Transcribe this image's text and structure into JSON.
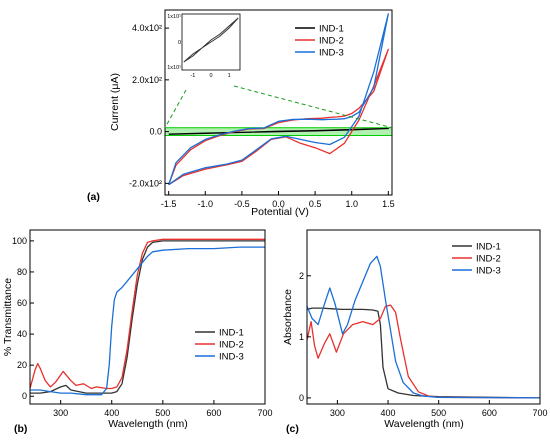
{
  "chart_data": [
    {
      "type": "line",
      "panel_label": "(a)",
      "xlabel": "Potential (V)",
      "ylabel": "Current (μA)",
      "xlim": [
        -1.55,
        1.55
      ],
      "ylim": [
        -245,
        470
      ],
      "x_ticks": [
        -1.5,
        -1.0,
        -0.5,
        0.0,
        0.5,
        1.0,
        1.5
      ],
      "x_tick_labels": [
        "-1.5",
        "-1.0",
        "-0.5",
        "0.0",
        "0.5",
        "1.0",
        "1.5"
      ],
      "y_ticks": [
        -200,
        0,
        200,
        400
      ],
      "y_tick_labels": [
        "-2.0x10²",
        "0.0",
        "2.0x10²",
        "4.0x10²"
      ],
      "legend": "top-right",
      "highlight_band": {
        "ymin": -15,
        "ymax": 15,
        "color": "#00cc00"
      },
      "series": [
        {
          "name": "IND-1",
          "color": "#000000",
          "x": [
            -1.5,
            -1.0,
            -0.5,
            0.0,
            0.5,
            1.0,
            1.5,
            1.0,
            0.5,
            0.0,
            -0.5,
            -1.0,
            -1.5
          ],
          "y": [
            -10,
            -7,
            -3,
            0,
            3,
            7,
            12,
            8,
            4,
            1,
            -3,
            -6,
            -10
          ]
        },
        {
          "name": "IND-2",
          "color": "#e8302e",
          "x": [
            -1.5,
            -1.3,
            -1.0,
            -0.7,
            -0.5,
            -0.3,
            -0.1,
            0.1,
            0.3,
            0.5,
            0.7,
            0.9,
            1.1,
            1.3,
            1.5,
            1.3,
            1.1,
            1.0,
            0.9,
            0.8,
            0.7,
            0.6,
            0.4,
            0.2,
            0.0,
            -0.2,
            -0.4,
            -0.6,
            -0.8,
            -1.0,
            -1.2,
            -1.4,
            -1.5
          ],
          "y": [
            -205,
            -170,
            -145,
            -128,
            -115,
            -75,
            -30,
            -20,
            -45,
            -62,
            -85,
            -45,
            45,
            175,
            318,
            155,
            90,
            70,
            60,
            57,
            55,
            52,
            50,
            45,
            35,
            12,
            10,
            0,
            -15,
            -35,
            -70,
            -130,
            -205
          ]
        },
        {
          "name": "IND-3",
          "color": "#1a6fd8",
          "x": [
            -1.5,
            -1.3,
            -1.0,
            -0.7,
            -0.5,
            -0.3,
            -0.1,
            0.1,
            0.3,
            0.5,
            0.7,
            0.9,
            1.1,
            1.3,
            1.5,
            1.3,
            1.1,
            1.0,
            0.9,
            0.8,
            0.7,
            0.6,
            0.4,
            0.2,
            0.0,
            -0.2,
            -0.4,
            -0.6,
            -0.8,
            -1.0,
            -1.2,
            -1.4,
            -1.5
          ],
          "y": [
            -205,
            -165,
            -140,
            -125,
            -110,
            -70,
            -28,
            -18,
            -30,
            -42,
            -50,
            -22,
            60,
            230,
            455,
            170,
            75,
            58,
            50,
            48,
            47,
            46,
            48,
            47,
            40,
            14,
            12,
            2,
            -12,
            -30,
            -62,
            -120,
            -205
          ]
        }
      ],
      "inset": {
        "x_ticks": [
          -1,
          0,
          1
        ],
        "x_tick_labels": [
          "-1",
          "0",
          "1"
        ],
        "y_tick_labels": [
          "1x10¹",
          "0",
          "1x10¹"
        ],
        "x": [
          -1.5,
          -1.0,
          -0.5,
          0.0,
          0.5,
          1.0,
          1.5,
          1.0,
          0.5,
          0.0,
          -0.5,
          -1.0,
          -1.5
        ],
        "y": [
          -10,
          -7,
          -3,
          0,
          3,
          7,
          12,
          8,
          4,
          1,
          -3,
          -6,
          -10
        ]
      }
    },
    {
      "type": "line",
      "panel_label": "(b)",
      "xlabel": "Wavelength (nm)",
      "ylabel": "% Transmittance",
      "xlim": [
        240,
        700
      ],
      "ylim": [
        -5,
        107
      ],
      "x_ticks": [
        300,
        400,
        500,
        600,
        700
      ],
      "x_tick_labels": [
        "300",
        "400",
        "500",
        "600",
        "700"
      ],
      "y_ticks": [
        0,
        20,
        40,
        60,
        80,
        100
      ],
      "y_tick_labels": [
        "0",
        "20",
        "40",
        "60",
        "80",
        "100"
      ],
      "legend": "center-right",
      "series": [
        {
          "name": "IND-1",
          "color": "#333333",
          "x": [
            240,
            260,
            280,
            300,
            310,
            320,
            350,
            380,
            400,
            410,
            420,
            430,
            440,
            450,
            460,
            470,
            480,
            500,
            550,
            600,
            650,
            700
          ],
          "y": [
            2,
            2,
            3,
            6,
            7,
            4,
            2,
            2,
            2,
            3,
            8,
            25,
            50,
            72,
            88,
            96,
            99,
            100,
            100,
            100,
            100,
            100
          ]
        },
        {
          "name": "IND-2",
          "color": "#e8302e",
          "x": [
            240,
            250,
            255,
            260,
            270,
            280,
            290,
            305,
            320,
            330,
            345,
            360,
            370,
            390,
            400,
            410,
            420,
            430,
            440,
            450,
            460,
            470,
            480,
            500,
            550,
            600,
            650,
            700
          ],
          "y": [
            5,
            17,
            21,
            18,
            10,
            6,
            9,
            16,
            10,
            7,
            8,
            5,
            6,
            5,
            5,
            6,
            12,
            30,
            55,
            78,
            92,
            99,
            100,
            101,
            101,
            101,
            101,
            101
          ]
        },
        {
          "name": "IND-3",
          "color": "#1a6fd8",
          "x": [
            240,
            260,
            280,
            300,
            320,
            350,
            380,
            390,
            395,
            400,
            405,
            410,
            420,
            430,
            440,
            450,
            460,
            470,
            480,
            500,
            550,
            600,
            650,
            700
          ],
          "y": [
            4,
            4,
            3,
            2,
            2,
            1,
            1,
            5,
            20,
            45,
            62,
            67,
            70,
            74,
            78,
            82,
            86,
            90,
            93,
            94,
            95,
            95,
            96,
            96
          ]
        }
      ]
    },
    {
      "type": "line",
      "panel_label": "(c)",
      "xlabel": "Wavelength (nm)",
      "ylabel": "Absorbance",
      "xlim": [
        240,
        700
      ],
      "ylim": [
        -0.1,
        2.75
      ],
      "x_ticks": [
        300,
        400,
        500,
        600,
        700
      ],
      "x_tick_labels": [
        "300",
        "400",
        "500",
        "600",
        "700"
      ],
      "y_ticks": [
        0,
        1,
        2
      ],
      "y_tick_labels": [
        "0",
        "1",
        "2"
      ],
      "legend": "top-right",
      "series": [
        {
          "name": "IND-1",
          "color": "#333333",
          "x": [
            240,
            250,
            270,
            290,
            310,
            330,
            350,
            370,
            380,
            385,
            390,
            400,
            420,
            450,
            500,
            700
          ],
          "y": [
            1.45,
            1.47,
            1.47,
            1.46,
            1.45,
            1.45,
            1.45,
            1.44,
            1.42,
            1.2,
            0.5,
            0.15,
            0.08,
            0.04,
            0.02,
            0.0
          ]
        },
        {
          "name": "IND-2",
          "color": "#e8302e",
          "x": [
            240,
            248,
            255,
            262,
            275,
            285,
            298,
            312,
            330,
            350,
            370,
            385,
            395,
            405,
            415,
            425,
            440,
            460,
            480,
            500,
            700
          ],
          "y": [
            0.95,
            1.25,
            0.85,
            0.65,
            0.9,
            1.05,
            0.75,
            1.05,
            1.2,
            1.25,
            1.2,
            1.3,
            1.5,
            1.52,
            1.4,
            0.95,
            0.35,
            0.1,
            0.03,
            0.01,
            0.0
          ]
        },
        {
          "name": "IND-3",
          "color": "#1a6fd8",
          "x": [
            240,
            250,
            262,
            275,
            285,
            295,
            310,
            320,
            335,
            350,
            365,
            378,
            385,
            395,
            405,
            415,
            430,
            450,
            470,
            500,
            700
          ],
          "y": [
            1.5,
            1.3,
            1.2,
            1.55,
            1.8,
            1.55,
            1.05,
            1.2,
            1.6,
            1.9,
            2.2,
            2.32,
            2.15,
            1.6,
            1.1,
            0.6,
            0.25,
            0.08,
            0.03,
            0.01,
            0.0
          ]
        }
      ]
    }
  ]
}
